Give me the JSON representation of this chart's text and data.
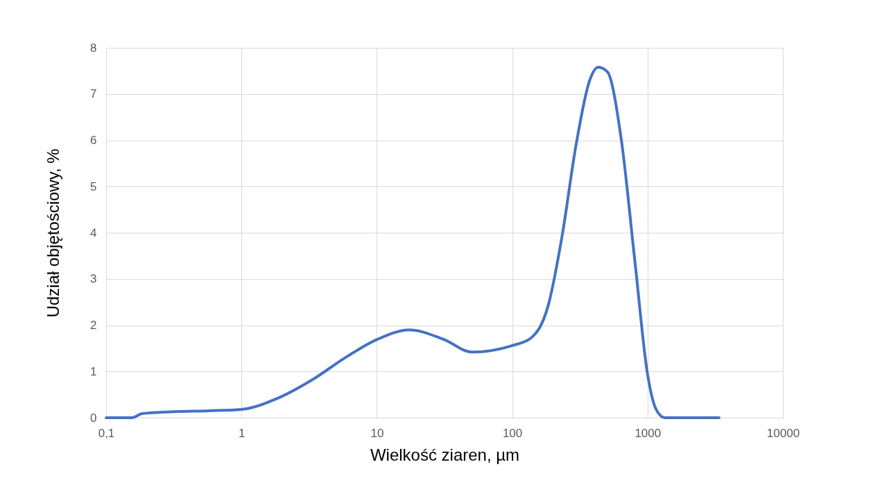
{
  "chart_data": {
    "type": "line",
    "xlabel": "Wielkość ziaren, µm",
    "ylabel": "Udział objętościowy, %",
    "x": [
      0.1,
      0.155,
      0.185,
      0.314,
      0.57,
      1,
      1.85,
      3.33,
      6.0,
      10,
      17.4,
      31.4,
      50.5,
      100,
      137,
      185,
      234,
      296,
      375,
      432,
      505,
      638,
      809,
      1000,
      1153,
      1343,
      3375
    ],
    "series": [
      {
        "color": "#4472c4",
        "values": [
          0,
          0,
          0.09,
          0.13,
          0.15,
          0.18,
          0.42,
          0.82,
          1.32,
          1.69,
          1.9,
          1.69,
          1.42,
          1.56,
          1.72,
          2.44,
          3.94,
          5.89,
          7.31,
          7.58,
          7.48,
          6.04,
          3.34,
          0.94,
          0.19,
          0,
          0
        ]
      }
    ],
    "log": "x",
    "xlim": [
      0.1,
      10000
    ],
    "xticks": [
      {
        "value": 0.1,
        "label": "0,1"
      },
      1,
      10,
      100,
      1000,
      10000
    ],
    "ylim": [
      0,
      8
    ],
    "yticks": [
      0,
      1,
      2,
      3,
      4,
      5,
      6,
      7,
      8
    ],
    "grid": true
  }
}
